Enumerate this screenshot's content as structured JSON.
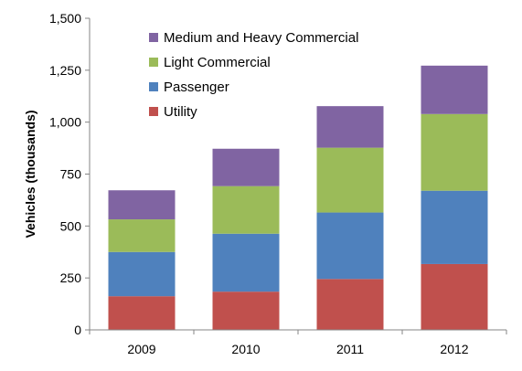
{
  "chart_data": {
    "type": "bar",
    "stacked": true,
    "title": "",
    "xlabel": "",
    "ylabel": "Vehicles (thousands)",
    "ylim": [
      0,
      1500
    ],
    "yticks": [
      0,
      250,
      500,
      750,
      1000,
      1250,
      1500
    ],
    "ytick_labels": [
      "0",
      "250",
      "500",
      "750",
      "1,000",
      "1,250",
      "1,500"
    ],
    "categories": [
      "2009",
      "2010",
      "2011",
      "2012"
    ],
    "grid": false,
    "legend_position": "top-left",
    "series": [
      {
        "name": "Utility",
        "color": "#c0504d",
        "values": [
          162,
          184,
          245,
          317
        ]
      },
      {
        "name": "Passenger",
        "color": "#4f81bd",
        "values": [
          213,
          279,
          320,
          353
        ]
      },
      {
        "name": "Light Commercial",
        "color": "#9bbb59",
        "values": [
          157,
          229,
          312,
          369
        ]
      },
      {
        "name": "Medium and Heavy Commercial",
        "color": "#8064a2",
        "values": [
          140,
          180,
          200,
          233
        ]
      }
    ]
  }
}
